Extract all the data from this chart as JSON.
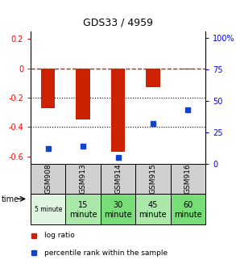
{
  "title": "GDS33 / 4959",
  "samples": [
    "GSM908",
    "GSM913",
    "GSM914",
    "GSM915",
    "GSM916"
  ],
  "time_labels_top": [
    "5 minute",
    "15",
    "30",
    "45",
    "60"
  ],
  "time_labels_bot": [
    "",
    "minute",
    "minute",
    "minute",
    "minute"
  ],
  "time_colors": [
    "#e0f5e0",
    "#aae8aa",
    "#77dd77",
    "#aae8aa",
    "#77dd77"
  ],
  "log_ratio": [
    -0.27,
    -0.35,
    -0.57,
    -0.13,
    -0.005
  ],
  "percentile_rank": [
    12,
    14,
    5,
    32,
    43
  ],
  "ylim_left": [
    -0.65,
    0.25
  ],
  "ylim_right": [
    0,
    105
  ],
  "y_ticks_left": [
    0.2,
    0.0,
    -0.2,
    -0.4,
    -0.6
  ],
  "y_ticks_right": [
    100,
    75,
    50,
    25,
    0
  ],
  "bar_color": "#cc2200",
  "dot_color": "#1144cc",
  "bar_width": 0.4,
  "legend_items": [
    "log ratio",
    "percentile rank within the sample"
  ],
  "dashed_line_color": "#cc2200"
}
